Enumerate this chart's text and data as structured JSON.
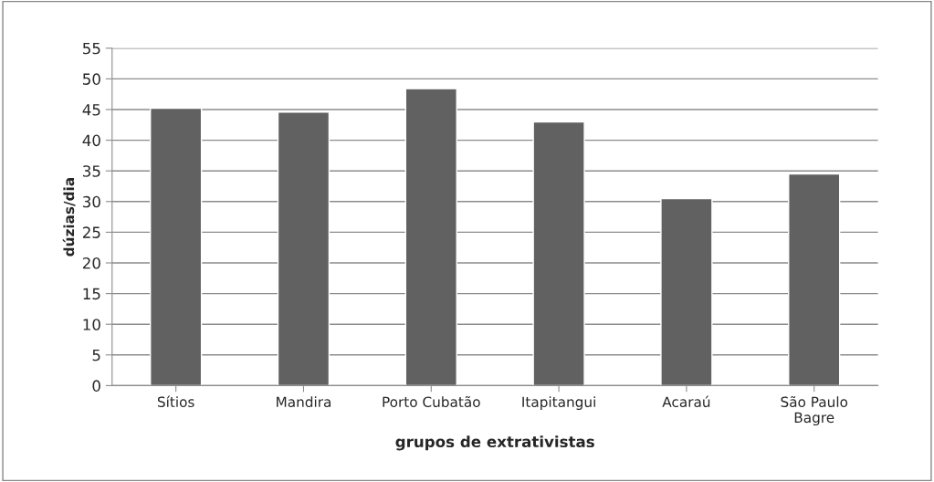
{
  "chart_data": {
    "type": "bar",
    "xlabel": "grupos de extrativistas",
    "ylabel": "dúzias/dia",
    "categories": [
      "Sítios",
      "Mandira",
      "Porto Cubatão",
      "Itapitangui",
      "Acaraú",
      "São Paulo\nBagre"
    ],
    "values": [
      45.2,
      44.6,
      48.4,
      43.0,
      30.5,
      34.5
    ],
    "color": "#616161",
    "ylim": [
      0,
      55
    ],
    "yticks": [
      0,
      5,
      10,
      15,
      20,
      25,
      30,
      35,
      40,
      45,
      50,
      55
    ],
    "grid": "y"
  }
}
